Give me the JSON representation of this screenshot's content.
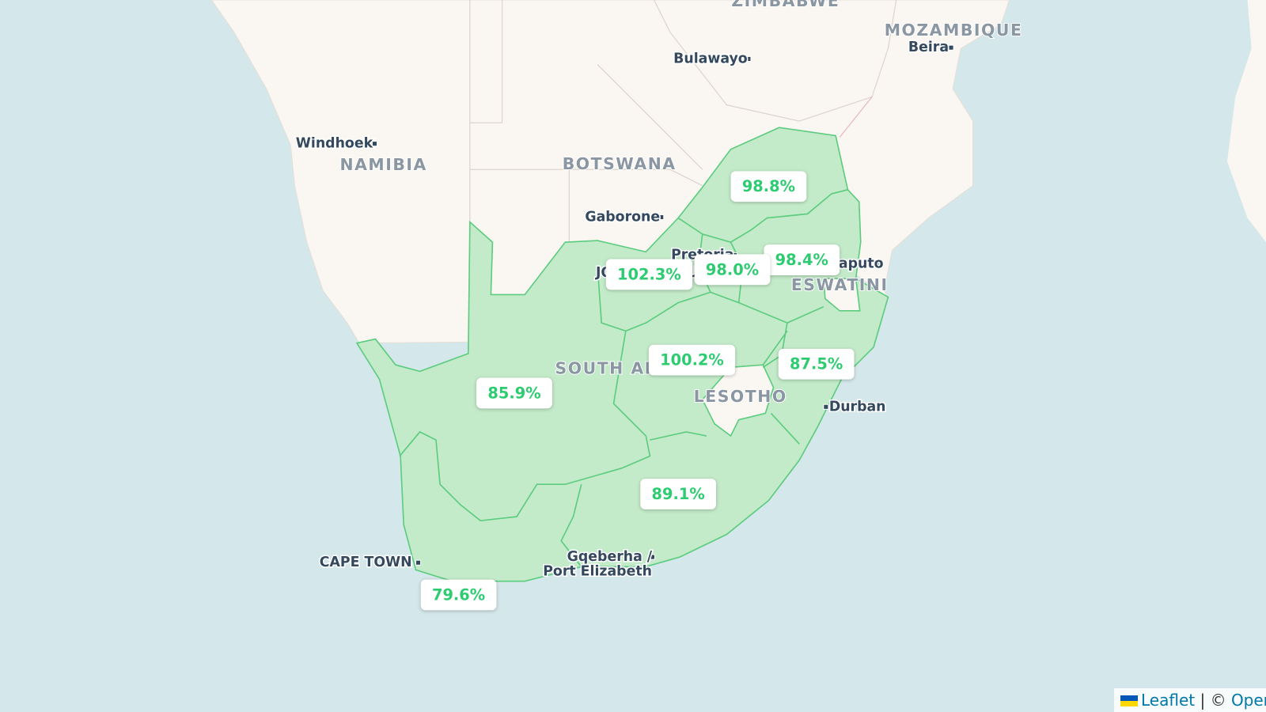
{
  "map": {
    "places": [
      {
        "label": "ZIMBABWE",
        "kind": "country"
      },
      {
        "label": "MOZAMBIQUE",
        "kind": "country"
      },
      {
        "label": "Beira",
        "kind": "city"
      },
      {
        "label": "Bulawayo",
        "kind": "city"
      },
      {
        "label": "Windhoek",
        "kind": "city"
      },
      {
        "label": "NAMIBIA",
        "kind": "country"
      },
      {
        "label": "BOTSWANA",
        "kind": "country"
      },
      {
        "label": "Gaborone",
        "kind": "city"
      },
      {
        "label": "Pretoria",
        "kind": "city"
      },
      {
        "label": "JOHANNESBURG",
        "kind": "city"
      },
      {
        "label": "Maputo",
        "kind": "city"
      },
      {
        "label": "ESWATINI",
        "kind": "country"
      },
      {
        "label": "SOUTH AFRICA",
        "kind": "country"
      },
      {
        "label": "LESOTHO",
        "kind": "country"
      },
      {
        "label": "Durban",
        "kind": "city"
      },
      {
        "label": "CAPE TOWN",
        "kind": "city"
      },
      {
        "label": "Gqeberha /",
        "kind": "city"
      },
      {
        "label": "Port Elizabeth",
        "kind": "city"
      }
    ],
    "regions": [
      {
        "label": "98.8%"
      },
      {
        "label": "98.4%"
      },
      {
        "label": "98.0%"
      },
      {
        "label": "102.3%"
      },
      {
        "label": "100.2%"
      },
      {
        "label": "87.5%"
      },
      {
        "label": "85.9%"
      },
      {
        "label": "89.1%"
      },
      {
        "label": "79.6%"
      }
    ]
  },
  "attribution": {
    "link": "Leaflet",
    "separator": "| ©",
    "source": "OpenStreetMap"
  }
}
